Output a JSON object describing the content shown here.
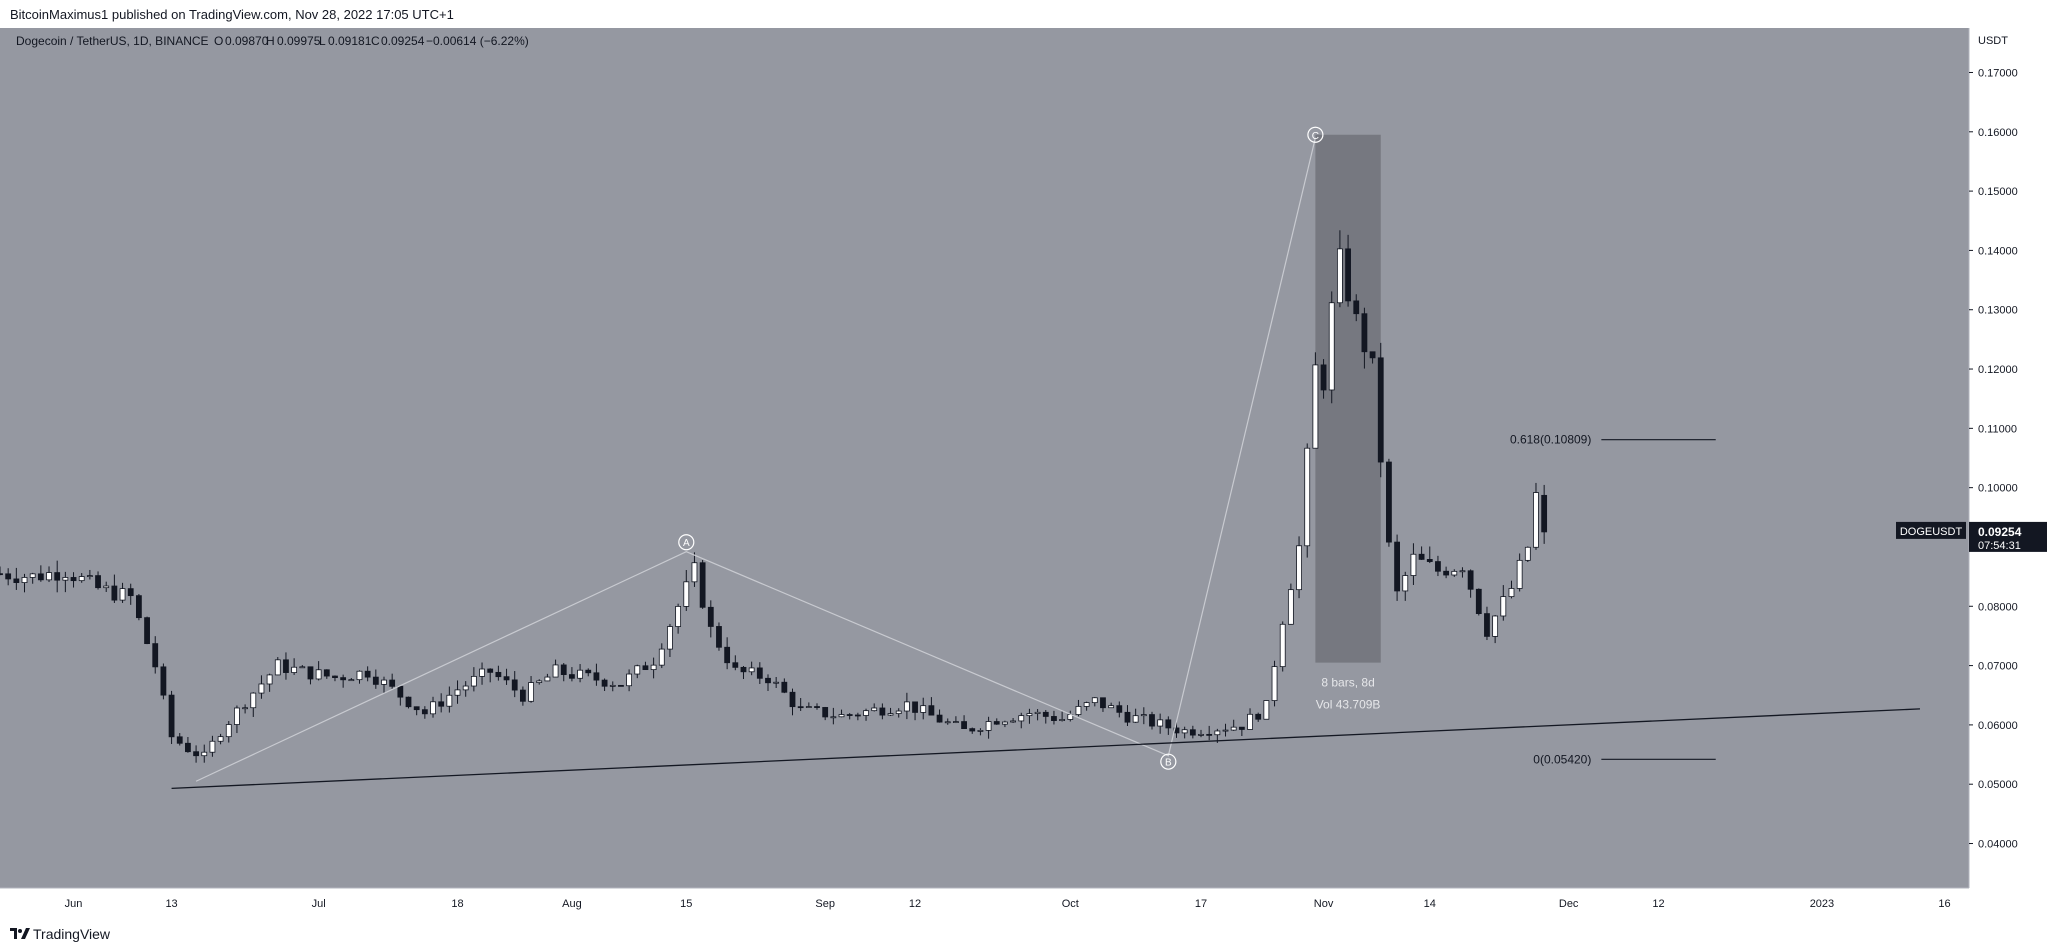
{
  "header": {
    "publisher": "BitcoinMaximus1 published on TradingView.com, Nov 28, 2022 17:05 UTC+1"
  },
  "legend": {
    "symbol": "Dogecoin / TetherUS, 1D, BINANCE",
    "open_label": "O",
    "open": "0.09870",
    "high_label": "H",
    "high": "0.09975",
    "low_label": "L",
    "low": "0.09181",
    "close_label": "C",
    "close": "0.09254",
    "change": "−0.00614 (−6.22%)"
  },
  "footer": {
    "brand": "TradingView"
  },
  "colors": {
    "background": "#9598a1",
    "axis_background": "#ffffff",
    "candle_up": "#ffffff",
    "candle_down": "#131722",
    "wick": "#131722",
    "wave_line": "#c8cad0",
    "trendline": "#131722",
    "range_box": "#6c6e76"
  },
  "chart_data": {
    "type": "candlestick",
    "y_axis_unit": "USDT",
    "ylim": [
      0.0325,
      0.1775
    ],
    "y_ticks": [
      0.04,
      0.05,
      0.06,
      0.07,
      0.08,
      0.09,
      0.1,
      0.11,
      0.12,
      0.13,
      0.14,
      0.15,
      0.16,
      0.17
    ],
    "y_tick_labels": [
      "0.04000",
      "0.05000",
      "0.06000",
      "0.07000",
      "0.08000",
      "0.09000",
      "0.10000",
      "0.11000",
      "0.12000",
      "0.13000",
      "0.14000",
      "0.15000",
      "0.16000",
      "0.17000"
    ],
    "x_start": "2022-05-23",
    "x_end": "2023-01-19",
    "x_ticks": [
      {
        "date": "2022-06-01",
        "label": "Jun"
      },
      {
        "date": "2022-06-13",
        "label": "13"
      },
      {
        "date": "2022-07-01",
        "label": "Jul"
      },
      {
        "date": "2022-07-18",
        "label": "18"
      },
      {
        "date": "2022-08-01",
        "label": "Aug"
      },
      {
        "date": "2022-08-15",
        "label": "15"
      },
      {
        "date": "2022-09-01",
        "label": "Sep"
      },
      {
        "date": "2022-09-12",
        "label": "12"
      },
      {
        "date": "2022-10-01",
        "label": "Oct"
      },
      {
        "date": "2022-10-17",
        "label": "17"
      },
      {
        "date": "2022-11-01",
        "label": "Nov"
      },
      {
        "date": "2022-11-14",
        "label": "14"
      },
      {
        "date": "2022-12-01",
        "label": "Dec"
      },
      {
        "date": "2022-12-12",
        "label": "12"
      },
      {
        "date": "2023-01-01",
        "label": "2023"
      },
      {
        "date": "2023-01-16",
        "label": "16"
      }
    ],
    "price_path": [
      [
        "2022-05-23",
        0.0855
      ],
      [
        "2022-05-27",
        0.085
      ],
      [
        "2022-05-31",
        0.086
      ],
      [
        "2022-06-04",
        0.083
      ],
      [
        "2022-06-08",
        0.0815
      ],
      [
        "2022-06-11",
        0.07
      ],
      [
        "2022-06-13",
        0.058
      ],
      [
        "2022-06-15",
        0.056
      ],
      [
        "2022-06-17",
        0.0545
      ],
      [
        "2022-06-19",
        0.059
      ],
      [
        "2022-06-22",
        0.064
      ],
      [
        "2022-06-26",
        0.07
      ],
      [
        "2022-06-29",
        0.069
      ],
      [
        "2022-07-03",
        0.068
      ],
      [
        "2022-07-07",
        0.069
      ],
      [
        "2022-07-11",
        0.065
      ],
      [
        "2022-07-14",
        0.062
      ],
      [
        "2022-07-18",
        0.066
      ],
      [
        "2022-07-22",
        0.069
      ],
      [
        "2022-07-26",
        0.065
      ],
      [
        "2022-07-30",
        0.069
      ],
      [
        "2022-08-03",
        0.068
      ],
      [
        "2022-08-07",
        0.067
      ],
      [
        "2022-08-11",
        0.071
      ],
      [
        "2022-08-14",
        0.08
      ],
      [
        "2022-08-16",
        0.086
      ],
      [
        "2022-08-18",
        0.076
      ],
      [
        "2022-08-21",
        0.069
      ],
      [
        "2022-08-25",
        0.068
      ],
      [
        "2022-08-29",
        0.0625
      ],
      [
        "2022-09-03",
        0.0615
      ],
      [
        "2022-09-07",
        0.0625
      ],
      [
        "2022-09-11",
        0.0635
      ],
      [
        "2022-09-14",
        0.0615
      ],
      [
        "2022-09-18",
        0.059
      ],
      [
        "2022-09-22",
        0.061
      ],
      [
        "2022-09-26",
        0.062
      ],
      [
        "2022-09-30",
        0.061
      ],
      [
        "2022-10-04",
        0.064
      ],
      [
        "2022-10-08",
        0.0615
      ],
      [
        "2022-10-12",
        0.06
      ],
      [
        "2022-10-15",
        0.059
      ],
      [
        "2022-10-19",
        0.0595
      ],
      [
        "2022-10-22",
        0.06
      ],
      [
        "2022-10-25",
        0.063
      ],
      [
        "2022-10-27",
        0.078
      ],
      [
        "2022-10-29",
        0.09
      ],
      [
        "2022-10-31",
        0.12
      ],
      [
        "2022-11-01",
        0.118
      ],
      [
        "2022-11-02",
        0.13
      ],
      [
        "2022-11-03",
        0.138
      ],
      [
        "2022-11-05",
        0.128
      ],
      [
        "2022-11-07",
        0.12
      ],
      [
        "2022-11-09",
        0.09
      ],
      [
        "2022-11-10",
        0.082
      ],
      [
        "2022-11-12",
        0.088
      ],
      [
        "2022-11-15",
        0.086
      ],
      [
        "2022-11-18",
        0.087
      ],
      [
        "2022-11-21",
        0.076
      ],
      [
        "2022-11-24",
        0.083
      ],
      [
        "2022-11-26",
        0.09
      ],
      [
        "2022-11-27",
        0.0987
      ],
      [
        "2022-11-28",
        0.0925
      ]
    ],
    "fib_levels": [
      {
        "label": "0.618(0.10809)",
        "value": 0.10809
      },
      {
        "label": "0(0.05420)",
        "value": 0.0542
      }
    ],
    "wave_labels": [
      {
        "label": "A",
        "date": "2022-08-15",
        "value": 0.0908
      },
      {
        "label": "B",
        "date": "2022-10-13",
        "value": 0.0538
      },
      {
        "label": "C",
        "date": "2022-10-31",
        "value": 0.1595
      }
    ],
    "wave_path": [
      [
        "2022-06-16",
        0.0505
      ],
      [
        "2022-08-15",
        0.0892
      ],
      [
        "2022-10-13",
        0.0548
      ],
      [
        "2022-10-31",
        0.159
      ]
    ],
    "trendline": [
      [
        "2022-06-13",
        0.0493
      ],
      [
        "2023-01-13",
        0.0627
      ]
    ],
    "range_box": {
      "start": "2022-10-31",
      "end": "2022-11-08",
      "high": 0.1595,
      "low": 0.0705,
      "label_bars": "8 bars, 8d",
      "label_vol": "Vol 43.709B"
    },
    "last_price": {
      "symbol": "DOGEUSDT",
      "value": "0.09254",
      "countdown": "07:54:31",
      "price": 0.09254
    }
  }
}
